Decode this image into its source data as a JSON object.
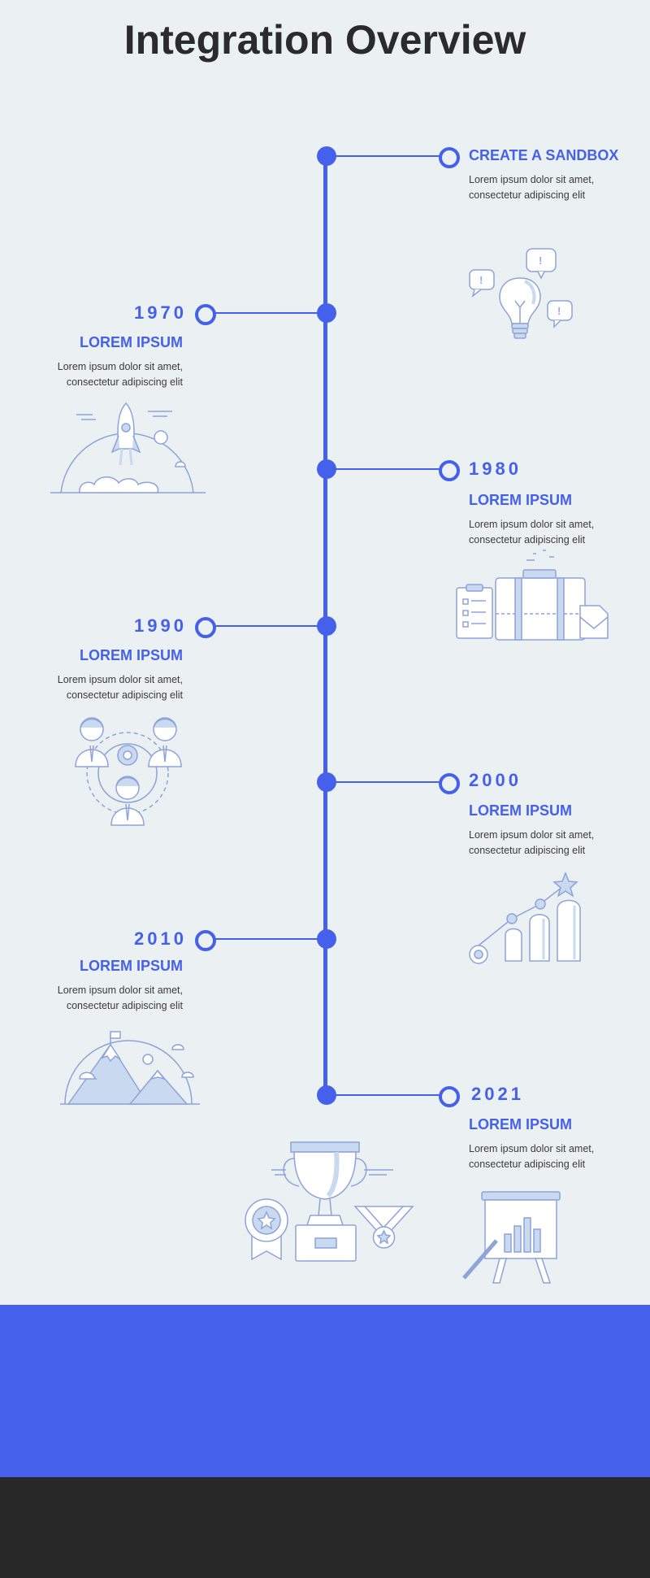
{
  "page": {
    "title": "Integration Overview"
  },
  "colors": {
    "accent": "#4561ec",
    "background": "#ebf0f3",
    "title": "#2a2b2e",
    "footer_dark": "#282829",
    "illustration_line": "#8ea3d9",
    "illustration_fill": "#c8d9f0"
  },
  "timeline": [
    {
      "side": "right",
      "year": "",
      "heading": "CREATE A SANDBOX",
      "text_line1": "Lorem ipsum dolor sit amet,",
      "text_line2": "consectetur adipiscing elit",
      "icon": "lightbulb-icon"
    },
    {
      "side": "left",
      "year": "1970",
      "heading": "LOREM IPSUM",
      "text_line1": "Lorem ipsum dolor sit amet,",
      "text_line2": "consectetur adipiscing elit",
      "icon": "rocket-icon"
    },
    {
      "side": "right",
      "year": "1980",
      "heading": "LOREM IPSUM",
      "text_line1": "Lorem ipsum dolor sit amet,",
      "text_line2": "consectetur adipiscing elit",
      "icon": "briefcase-icon"
    },
    {
      "side": "left",
      "year": "1990",
      "heading": "LOREM IPSUM",
      "text_line1": "Lorem ipsum dolor sit amet,",
      "text_line2": "consectetur adipiscing elit",
      "icon": "team-icon"
    },
    {
      "side": "right",
      "year": "2000",
      "heading": "LOREM IPSUM",
      "text_line1": "Lorem ipsum dolor sit amet,",
      "text_line2": "consectetur adipiscing elit",
      "icon": "growth-chart-icon"
    },
    {
      "side": "left",
      "year": "2010",
      "heading": "LOREM IPSUM",
      "text_line1": "Lorem ipsum dolor sit amet,",
      "text_line2": "consectetur adipiscing elit",
      "icon": "mountain-flag-icon"
    },
    {
      "side": "right",
      "year": "2021",
      "heading": "LOREM IPSUM",
      "text_line1": "Lorem ipsum dolor sit amet,",
      "text_line2": "consectetur adipiscing elit",
      "icon": "presentation-board-icon"
    }
  ],
  "extra_icons": [
    "trophy-icon",
    "award-ribbon-icon",
    "medal-icon"
  ]
}
